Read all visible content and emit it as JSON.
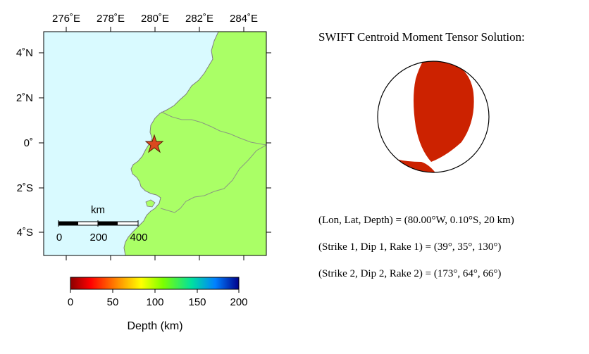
{
  "map": {
    "lon_ticks": [
      "276˚E",
      "278˚E",
      "280˚E",
      "282˚E",
      "284˚E"
    ],
    "lat_ticks": [
      "4˚N",
      "2˚N",
      "0˚",
      "2˚S",
      "4˚S"
    ],
    "scale_bar": {
      "unit": "km",
      "labels": [
        "0",
        "200",
        "400"
      ]
    },
    "epicenter_marker": "star-icon",
    "colors": {
      "land": "#aaff66",
      "ocean": "#d9faff",
      "border": "#8a9a80",
      "coast": "#7f7f7f",
      "star": "#d94a1f"
    }
  },
  "colorbar": {
    "labels": [
      "0",
      "50",
      "100",
      "150",
      "200"
    ],
    "title": "Depth (km)",
    "range": [
      0,
      200
    ],
    "colors": [
      "#8b0000",
      "#ff0000",
      "#ff8c00",
      "#ffff00",
      "#7cff00",
      "#00e0a0",
      "#0080ff",
      "#00008b"
    ]
  },
  "solution": {
    "title": "SWIFT Centroid Moment Tensor Solution:",
    "location_line": "(Lon, Lat, Depth) = (80.00°W, 0.10°S, 20 km)",
    "plane1_line": "(Strike 1, Dip 1, Rake 1) = (39°, 35°, 130°)",
    "plane2_line": "(Strike 2, Dip 2, Rake 2) = (173°, 64°, 66°)",
    "beachball_color": "#cc2200"
  }
}
